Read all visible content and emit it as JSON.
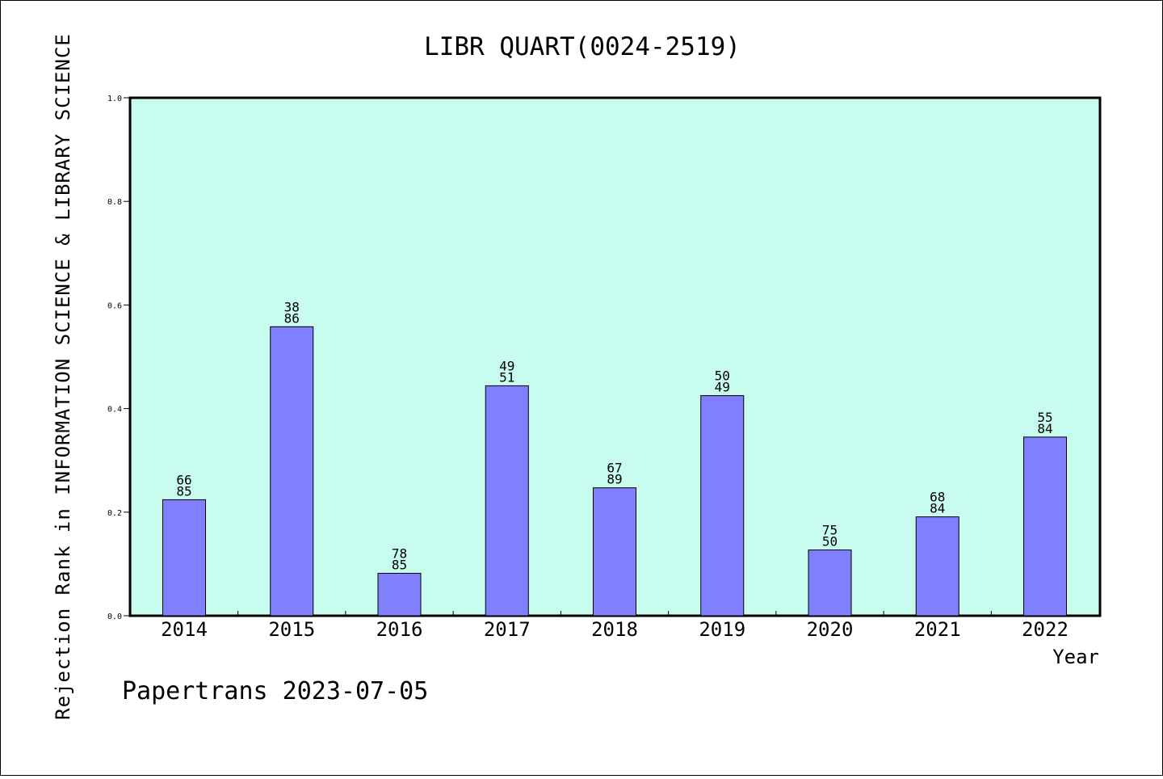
{
  "chart_data": {
    "type": "bar",
    "title": "LIBR QUART(0024-2519)",
    "xlabel": "Year",
    "ylabel": "Rejection Rank in INFORMATION SCIENCE & LIBRARY SCIENCE",
    "ylim": [
      0.0,
      1.0
    ],
    "yticks": [
      "0.0",
      "0.2",
      "0.4",
      "0.6",
      "0.8",
      "1.0"
    ],
    "categories": [
      "2014",
      "2015",
      "2016",
      "2017",
      "2018",
      "2019",
      "2020",
      "2021",
      "2022"
    ],
    "values": [
      0.224,
      0.558,
      0.082,
      0.444,
      0.247,
      0.425,
      0.127,
      0.191,
      0.345
    ],
    "bar_labels": [
      [
        "66",
        "85"
      ],
      [
        "38",
        "86"
      ],
      [
        "78",
        "85"
      ],
      [
        "49",
        "51"
      ],
      [
        "67",
        "89"
      ],
      [
        "50",
        "49"
      ],
      [
        "75",
        "50"
      ],
      [
        "68",
        "84"
      ],
      [
        "55",
        "84"
      ]
    ],
    "grid": false,
    "colors": {
      "plot_background": "#c8fcee",
      "bar_fill": "#8080ff",
      "bar_stroke": "#000000"
    }
  },
  "footer": {
    "text": "Papertrans 2023-07-05"
  }
}
